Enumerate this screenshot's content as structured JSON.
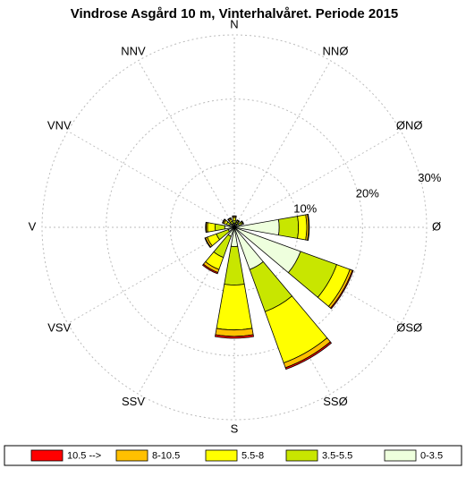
{
  "chart_data": {
    "type": "windrose",
    "title": "Vindrose Asgård 10 m, Vinterhalvåret. Periode 2015",
    "categories": [
      "N",
      "NNØ",
      "ØNØ",
      "Ø",
      "ØSØ",
      "SSØ",
      "S",
      "SSV",
      "VSV",
      "V",
      "VNV",
      "NNV"
    ],
    "series": [
      {
        "name": "10.5 -->",
        "color": "#ff0000",
        "values": [
          0.1,
          0.05,
          0.05,
          0.1,
          0.15,
          0.25,
          0.3,
          0.2,
          0.1,
          0.1,
          0.1,
          0.1
        ]
      },
      {
        "name": "8-10.5",
        "color": "#ffc000",
        "values": [
          0.2,
          0.1,
          0.1,
          0.3,
          0.4,
          0.8,
          1.0,
          0.5,
          0.3,
          0.2,
          0.2,
          0.2
        ]
      },
      {
        "name": "5.5-8",
        "color": "#ffff00",
        "values": [
          0.4,
          0.2,
          0.2,
          1.3,
          2.2,
          8.5,
          7.0,
          2.0,
          1.5,
          1.2,
          0.4,
          0.3
        ]
      },
      {
        "name": "3.5-5.5",
        "color": "#c8e600",
        "values": [
          0.5,
          0.3,
          0.4,
          3.0,
          6.0,
          7.0,
          6.0,
          3.5,
          2.0,
          1.5,
          0.5,
          0.4
        ]
      },
      {
        "name": "0-3.5",
        "color": "#eeffdd",
        "values": [
          0.6,
          0.6,
          0.8,
          7.0,
          11.0,
          7.0,
          3.0,
          1.5,
          1.0,
          1.5,
          0.8,
          0.6
        ]
      }
    ],
    "rlim": [
      0,
      30
    ],
    "rticks": [
      {
        "value": 10,
        "label": "10%"
      },
      {
        "value": 20,
        "label": "20%"
      },
      {
        "value": 30,
        "label": "30%"
      }
    ],
    "grid": true
  }
}
